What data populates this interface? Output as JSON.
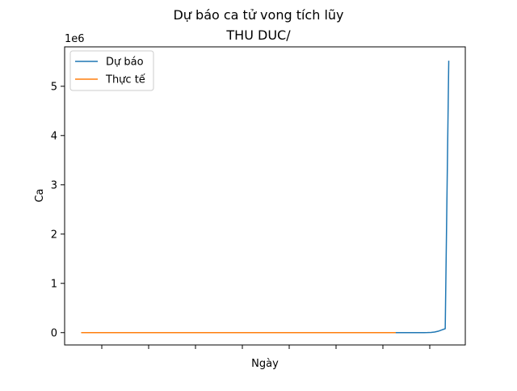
{
  "chart_data": {
    "type": "line",
    "title": "Dự báo ca tử vong tích lũy",
    "subtitle": "THU DUC/",
    "xlabel": "Ngày",
    "ylabel": "Ca",
    "y_multiplier_label": "1e6",
    "ylim": [
      -250000,
      5800000
    ],
    "y_ticks": [
      0,
      1000000,
      2000000,
      3000000,
      4000000,
      5000000
    ],
    "y_tick_labels": [
      "0",
      "1",
      "2",
      "3",
      "4",
      "5"
    ],
    "x_tick_count": 8,
    "grid": false,
    "legend_position": "upper-left",
    "series": [
      {
        "name": "Dự báo",
        "color": "#1f77b4",
        "values": [
          0,
          0,
          0,
          0,
          0,
          0,
          0,
          0,
          0,
          0,
          0,
          0,
          0,
          0,
          0,
          0,
          0,
          0,
          0,
          0,
          0,
          0,
          0,
          0,
          0,
          0,
          0,
          0,
          0,
          0,
          0,
          0,
          0,
          0,
          0,
          0,
          0,
          0,
          0,
          0,
          0,
          0,
          0,
          0,
          0,
          0,
          0,
          0,
          0,
          0,
          0,
          0,
          0,
          0,
          0,
          0,
          0,
          0,
          0,
          0,
          0,
          0,
          0,
          0,
          0,
          0,
          0,
          0,
          0,
          0,
          0,
          0,
          0,
          0,
          0,
          0,
          0,
          0,
          0,
          0,
          0,
          0,
          0,
          0,
          0,
          0,
          0,
          0,
          0,
          0,
          0,
          0,
          0,
          0,
          0,
          100,
          300,
          800,
          2000,
          5000,
          12000,
          28000,
          55000,
          80000,
          5520000
        ]
      },
      {
        "name": "Thực tế",
        "color": "#ff7f0e",
        "values": [
          0,
          0,
          0,
          0,
          0,
          0,
          0,
          0,
          0,
          0,
          0,
          0,
          0,
          0,
          0,
          0,
          0,
          0,
          0,
          0,
          0,
          0,
          0,
          0,
          0,
          0,
          0,
          0,
          0,
          0,
          0,
          0,
          0,
          0,
          0,
          0,
          0,
          0,
          0,
          0,
          0,
          0,
          0,
          0,
          0,
          0,
          0,
          0,
          0,
          0,
          0,
          0,
          0,
          0,
          0,
          0,
          0,
          0,
          0,
          0,
          0,
          0,
          0,
          0,
          0,
          0,
          0,
          0,
          0,
          0,
          0,
          0,
          0,
          0,
          0,
          0,
          0,
          0,
          0,
          0,
          0,
          0,
          0,
          0,
          0,
          0,
          0,
          0,
          0,
          0
        ]
      }
    ]
  }
}
